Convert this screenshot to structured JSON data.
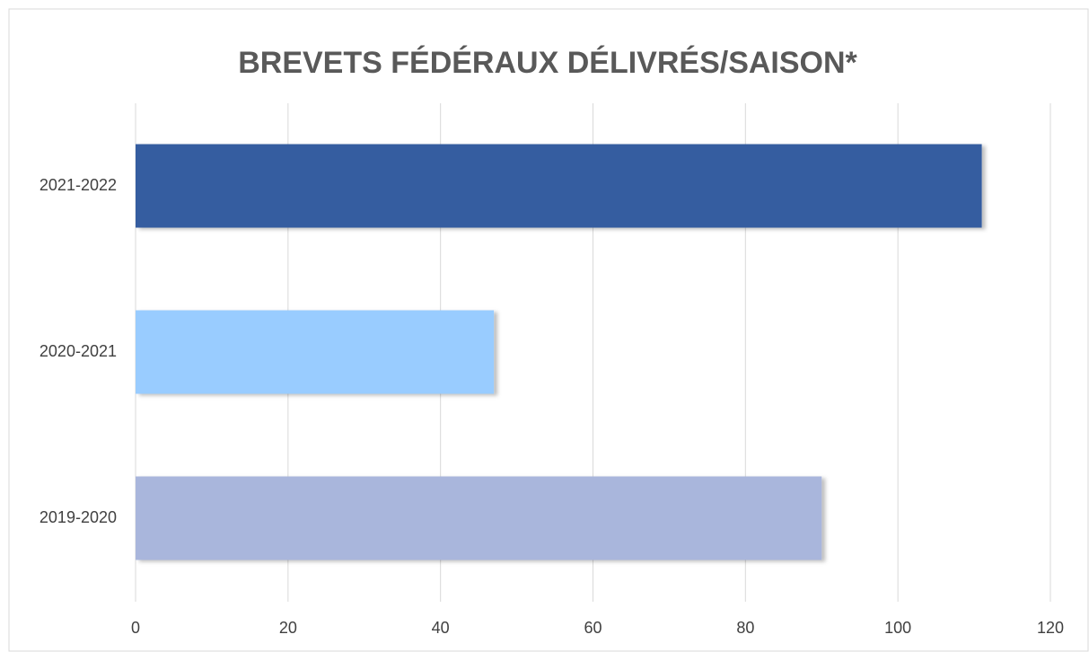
{
  "chart_data": {
    "type": "hbar",
    "title": "BREVETS FÉDÉRAUX DÉLIVRÉS/SAISON*",
    "categories": [
      "2021-2022",
      "2020-2021",
      "2019-2020"
    ],
    "values": [
      111,
      47,
      90
    ],
    "colors": [
      "#355da0",
      "#99ccff",
      "#a9b6dc"
    ],
    "xlim": [
      0,
      120
    ],
    "xticks": [
      0,
      20,
      40,
      60,
      80,
      100,
      120
    ],
    "grid": true
  }
}
